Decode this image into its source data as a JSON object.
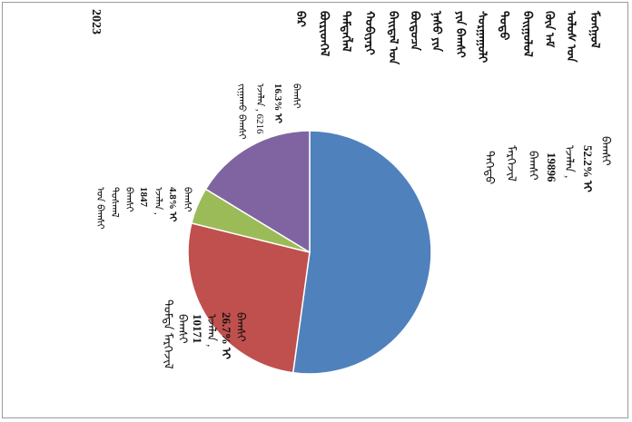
{
  "chart_data": {
    "type": "pie",
    "title_lines": [
      "ᠮᠣᠩᠭᠣᠯ",
      "ᠤᠯᠤᠰ ᠤᠨ",
      "ᠬᠦᠨ ᠠᠮ",
      "ᠪᠠᠢᠭᠤᠯᠤᠯ",
      "ᠳᠤᠲᠤ",
      "ᠰᠤᠷᠭᠠᠭᠤᠯᠢ",
      "ᠶᠢᠨ ᠪᠠᠭᠰᠢ",
      "ᠨᠠᠰᠤ ᠶᠢᠨ",
      "ᠪᠦᠲᠦᠴᠡ",
      "ᠪᠠᠢᠳᠠᠯ ᠤᠨ",
      "ᠬᠤᠪᠢᠶᠠᠷᠢ",
      "ᠲᠡᠮᠳᠡᠭᠯᠡᠯ",
      "ᠪᠦᠷᠢᠳᠬᠡᠯ",
      "ᠪᠡᠷ"
    ],
    "year": "2023",
    "slices": [
      {
        "value": 19896,
        "percent": 52.2,
        "color": "#4f81bd",
        "label_lines": [
          "ᠪᠠᠭᠰᠢ",
          "52.2% ᠢ",
          "ᠡᠵᠡᠯᠡᠨ ,",
          "19896",
          "ᠪᠠᠭᠰᠢ",
          "ᠮᠡᠷᠭᠡᠵᠢᠯ",
          "ᠳᠡᠭᠡᠳᠦ"
        ]
      },
      {
        "value": 10171,
        "percent": 26.7,
        "color": "#c0504d",
        "label_lines": [
          "ᠪᠠᠭᠰᠢ",
          "26.7% ᠢ",
          "ᠡᠵᠡᠯᠡᠨ ,",
          "10171",
          "ᠪᠠᠭᠰᠢ",
          "ᠳᠤᠮᠳᠠ ᠮᠡᠷᠭᠡᠵᠢᠯ"
        ]
      },
      {
        "value": 1847,
        "percent": 4.8,
        "color": "#9bbb59",
        "label_lines": [
          "ᠪᠠᠭᠰᠢ",
          "4.8% ᠢ",
          "ᠡᠵᠡᠯᠡᠨ ,",
          "1847",
          "ᠪᠠᠭᠰᠢ",
          "ᠳᠤᠰᠬᠠᠯ",
          "ᠤᠨ ᠪᠠᠭᠰᠢ"
        ]
      },
      {
        "value": 6216,
        "percent": 16.3,
        "color": "#8064a2",
        "label_lines": [
          "ᠪᠠᠭᠰᠢ",
          "16.3% ᠢ",
          "ᠡᠵᠡᠯᠡᠨ , 6216",
          "ᠵᠢᠭᠠᠬᠤ ᠪᠠᠭᠰᠢ"
        ]
      }
    ]
  }
}
